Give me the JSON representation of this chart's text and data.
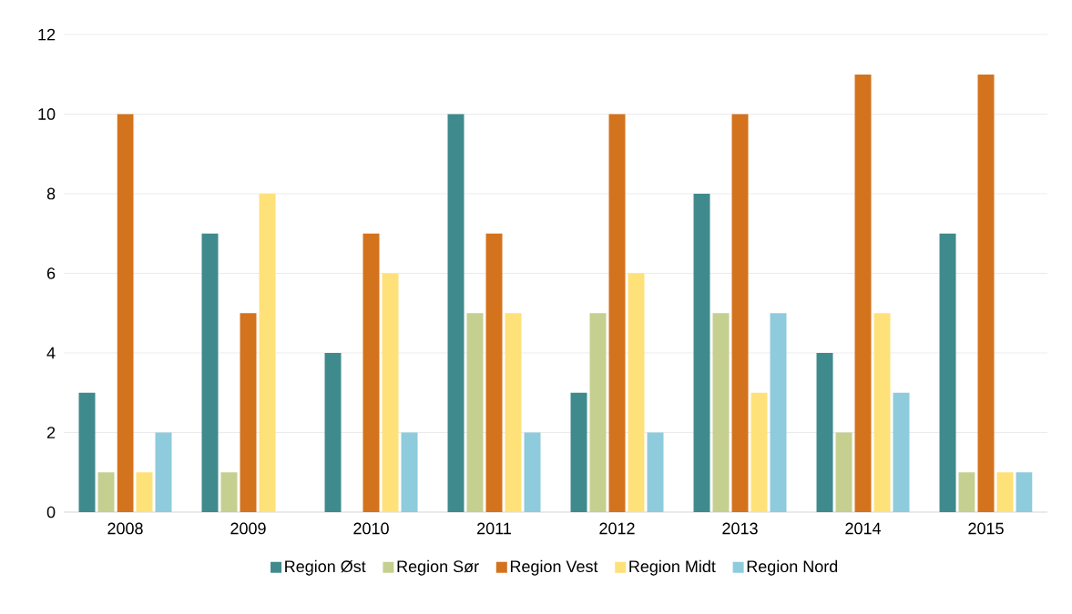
{
  "chart_data": {
    "type": "bar",
    "categories": [
      "2008",
      "2009",
      "2010",
      "2011",
      "2012",
      "2013",
      "2014",
      "2015"
    ],
    "series": [
      {
        "name": "Region Øst",
        "color": "#3f8a8c",
        "values": [
          3,
          7,
          4,
          10,
          3,
          8,
          4,
          7
        ]
      },
      {
        "name": "Region Sør",
        "color": "#c5cf8f",
        "values": [
          1,
          1,
          0,
          5,
          5,
          5,
          2,
          1
        ]
      },
      {
        "name": "Region Vest",
        "color": "#d4731d",
        "values": [
          10,
          5,
          7,
          7,
          10,
          10,
          11,
          11
        ]
      },
      {
        "name": "Region Midt",
        "color": "#ffe17a",
        "values": [
          1,
          8,
          6,
          5,
          6,
          3,
          5,
          1
        ]
      },
      {
        "name": "Region Nord",
        "color": "#8ecbdd",
        "values": [
          2,
          0,
          2,
          2,
          2,
          5,
          3,
          1
        ]
      }
    ],
    "ylim": [
      0,
      12
    ],
    "yticks": [
      0,
      2,
      4,
      6,
      8,
      10,
      12
    ],
    "grid": "y",
    "legend": "bottom"
  }
}
